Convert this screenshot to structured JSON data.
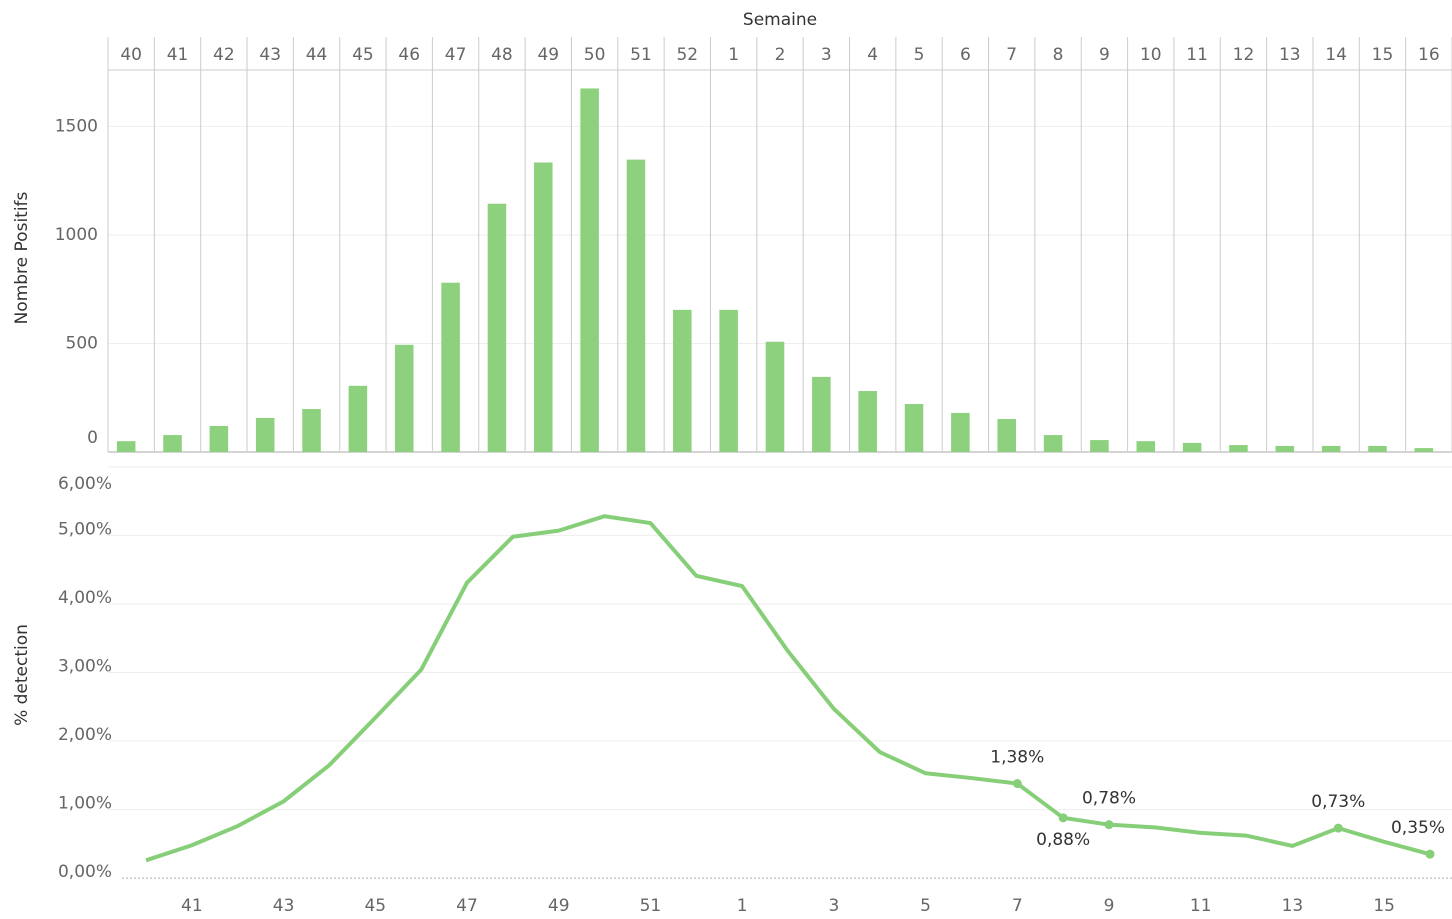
{
  "chart_data": [
    {
      "type": "bar",
      "title": "Semaine",
      "y_label": "Nombre Positifs",
      "categories": [
        "40",
        "41",
        "42",
        "43",
        "44",
        "45",
        "46",
        "47",
        "48",
        "49",
        "50",
        "51",
        "52",
        "1",
        "2",
        "3",
        "4",
        "5",
        "6",
        "7",
        "8",
        "9",
        "10",
        "11",
        "12",
        "13",
        "14",
        "15",
        "16"
      ],
      "values": [
        50,
        78,
        120,
        157,
        198,
        305,
        494,
        780,
        1144,
        1334,
        1675,
        1347,
        655,
        655,
        508,
        346,
        281,
        221,
        180,
        152,
        78,
        55,
        50,
        42,
        32,
        28,
        28,
        28,
        18
      ],
      "color": "#8dd17e",
      "ylim": [
        0,
        1760
      ],
      "yticks": [
        0,
        500,
        1000,
        1500
      ],
      "grid": true
    },
    {
      "type": "line",
      "y_label": "% detection",
      "categories": [
        null,
        "41",
        null,
        "43",
        null,
        "45",
        null,
        "47",
        null,
        "49",
        null,
        "51",
        null,
        "1",
        null,
        "3",
        null,
        "5",
        null,
        "7",
        null,
        "9",
        null,
        "11",
        null,
        "13",
        null,
        "15",
        null
      ],
      "values": [
        0.26,
        0.48,
        0.76,
        1.12,
        1.65,
        2.34,
        3.04,
        4.31,
        4.98,
        5.07,
        5.28,
        5.18,
        4.41,
        4.26,
        3.31,
        2.47,
        1.84,
        1.53,
        1.46,
        1.38,
        0.88,
        0.78,
        0.74,
        0.66,
        0.62,
        0.47,
        0.73,
        0.53,
        0.35
      ],
      "value_labels": [
        null,
        null,
        null,
        null,
        null,
        null,
        null,
        null,
        null,
        null,
        null,
        null,
        null,
        null,
        null,
        null,
        null,
        null,
        null,
        "1,38%",
        "0,88%",
        "0,78%",
        null,
        null,
        null,
        null,
        "0,73%",
        null,
        "0,35%"
      ],
      "color": "#86cf78",
      "ylim": [
        -0.1,
        6.1
      ],
      "yticks": [
        {
          "value": 0,
          "label": "0,00%"
        },
        {
          "value": 1,
          "label": "1,00%"
        },
        {
          "value": 2,
          "label": "2,00%"
        },
        {
          "value": 3,
          "label": "3,00%"
        },
        {
          "value": 4,
          "label": "4,00%"
        },
        {
          "value": 5,
          "label": "5,00%"
        },
        {
          "value": 6,
          "label": "6,00%"
        }
      ],
      "grid": true
    }
  ]
}
